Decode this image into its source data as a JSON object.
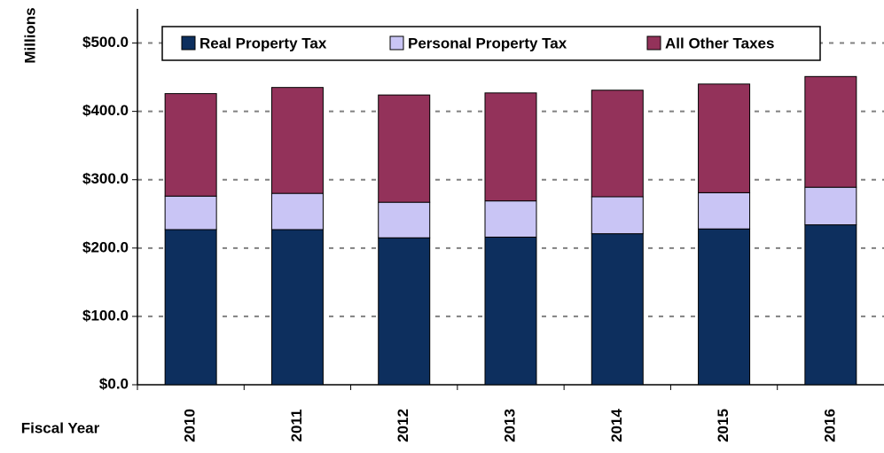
{
  "chart_data": {
    "type": "stacked_bar",
    "y_axis_label": "Millions",
    "x_axis_label": "Fiscal Year",
    "categories": [
      "2010",
      "2011",
      "2012",
      "2013",
      "2014",
      "2015",
      "2016"
    ],
    "series": [
      {
        "name": "Real Property Tax",
        "color": "#0d2f5e",
        "values": [
          227,
          227,
          215,
          216,
          221,
          228,
          234
        ]
      },
      {
        "name": "Personal Property Tax",
        "color": "#c9c5f5",
        "values": [
          49,
          53,
          52,
          53,
          54,
          53,
          55
        ]
      },
      {
        "name": "All Other Taxes",
        "color": "#93325a",
        "values": [
          150,
          155,
          157,
          158,
          156,
          159,
          162
        ]
      }
    ],
    "ylim": [
      0,
      550
    ],
    "yticks": [
      {
        "value": 0,
        "label": "$0.0"
      },
      {
        "value": 100,
        "label": "$100.0"
      },
      {
        "value": 200,
        "label": "$200.0"
      },
      {
        "value": 300,
        "label": "$300.0"
      },
      {
        "value": 400,
        "label": "$400.0"
      },
      {
        "value": 500,
        "label": "$500.0"
      }
    ],
    "grid": true,
    "legend": "top"
  }
}
